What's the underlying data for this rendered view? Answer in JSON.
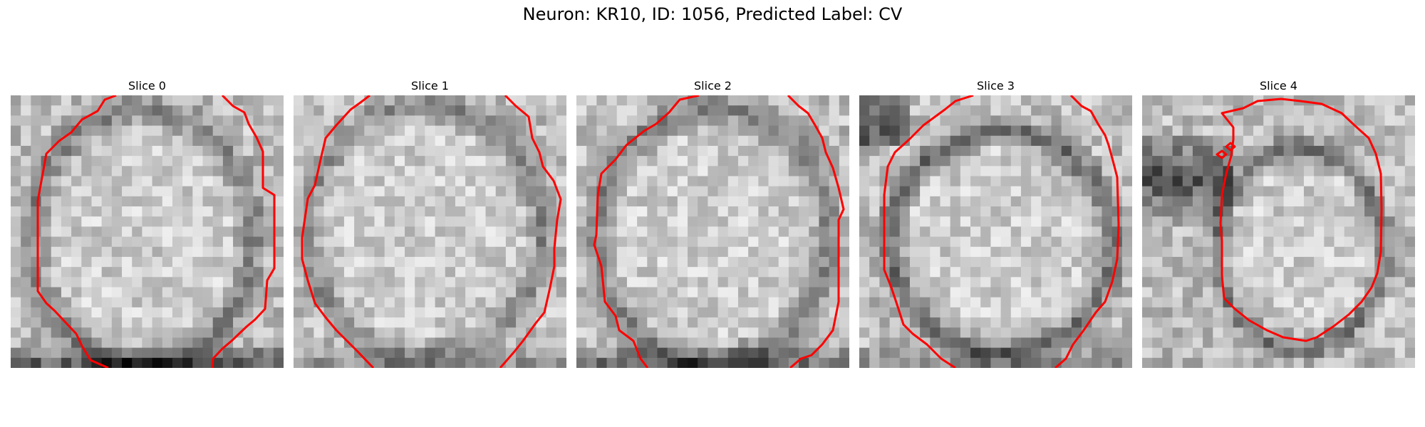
{
  "figure": {
    "title": "Neuron: KR10, ID: 1056, Predicted Label: CV",
    "contour_color": "#ff0000"
  },
  "panels": [
    {
      "title": "Slice 0"
    },
    {
      "title": "Slice 1"
    },
    {
      "title": "Slice 2"
    },
    {
      "title": "Slice 3"
    },
    {
      "title": "Slice 4"
    }
  ]
}
